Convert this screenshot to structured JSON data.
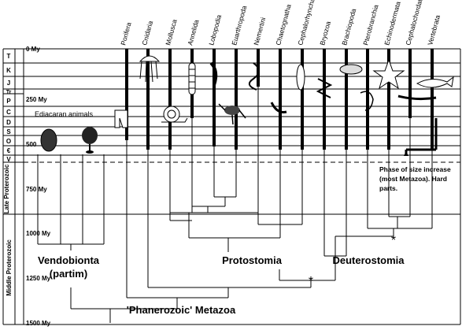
{
  "time_scale": {
    "era_labels": [
      {
        "label": "Late Proterozoic"
      },
      {
        "label": "Middle Proterozoic"
      }
    ],
    "my_ticks": [
      {
        "label": "0 My"
      },
      {
        "label": "250 My"
      },
      {
        "label": "500"
      },
      {
        "label": "750 My"
      },
      {
        "label": "1000 My"
      },
      {
        "label": "1250 My"
      },
      {
        "label": "1500 My"
      }
    ],
    "periods": [
      "T",
      "K",
      "J",
      "Tr",
      "P",
      "C",
      "D",
      "S",
      "O",
      "€",
      "V"
    ]
  },
  "taxa": [
    "Porifera",
    "Cnidaria",
    "Mollusca",
    "Annelida",
    "Lobopodia",
    "Euarthropoda",
    "Nemertini",
    "Chaetognatha",
    "Cephalorhyncha",
    "Bryozoa",
    "Brachiopoda",
    "Pterobranchia",
    "Echinodermata",
    "Cephalochordata",
    "Vertebrata"
  ],
  "labels": {
    "ediacaran": "Ediacaran animals",
    "vendobionta_1": "Vendobionta",
    "vendobionta_2": "(partim)",
    "protostomia": "Protostomia",
    "deuterostomia": "Deuterostomia",
    "phanerozoic_metazoa": "'Phanerozoic' Metazoa",
    "note_1": "Phase of size increase",
    "note_2": "(most Metazoa). Hard",
    "note_3": "parts."
  },
  "markers": {
    "asterisk": "*"
  }
}
